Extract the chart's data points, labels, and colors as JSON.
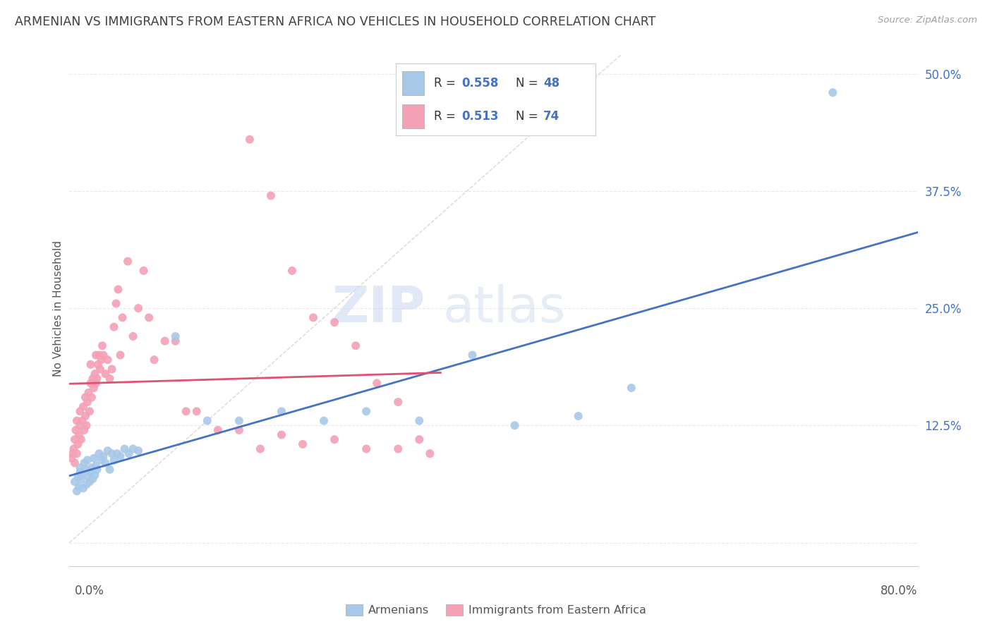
{
  "title": "ARMENIAN VS IMMIGRANTS FROM EASTERN AFRICA NO VEHICLES IN HOUSEHOLD CORRELATION CHART",
  "source": "Source: ZipAtlas.com",
  "ylabel": "No Vehicles in Household",
  "y_ticks_right": [
    0.0,
    0.125,
    0.25,
    0.375,
    0.5
  ],
  "y_tick_labels_right": [
    "",
    "12.5%",
    "25.0%",
    "37.5%",
    "50.0%"
  ],
  "xmin": 0.0,
  "xmax": 0.8,
  "ymin": -0.025,
  "ymax": 0.525,
  "color_armenian_dot": "#a8c8e8",
  "color_eastern_africa_dot": "#f4a0b5",
  "color_line_armenian": "#4472c4",
  "color_line_eastern_africa": "#e05070",
  "color_diagonal": "#c8c8c8",
  "color_grid": "#e8e8e8",
  "color_title": "#404040",
  "color_source": "#a0a0a0",
  "color_legend_text_blue": "#4472c4",
  "color_legend_text_pink": "#e05070",
  "watermark_zip": "ZIP",
  "watermark_atlas": "atlas",
  "legend_bottom_label1": "Armenians",
  "legend_bottom_label2": "Immigrants from Eastern Africa",
  "armenian_x": [
    0.005,
    0.007,
    0.008,
    0.009,
    0.01,
    0.01,
    0.011,
    0.012,
    0.013,
    0.014,
    0.015,
    0.016,
    0.017,
    0.018,
    0.019,
    0.02,
    0.021,
    0.022,
    0.023,
    0.024,
    0.025,
    0.026,
    0.028,
    0.03,
    0.032,
    0.034,
    0.036,
    0.038,
    0.04,
    0.042,
    0.045,
    0.048,
    0.052,
    0.056,
    0.06,
    0.065,
    0.1,
    0.13,
    0.16,
    0.2,
    0.24,
    0.28,
    0.33,
    0.38,
    0.42,
    0.48,
    0.53,
    0.72
  ],
  "armenian_y": [
    0.065,
    0.055,
    0.07,
    0.06,
    0.075,
    0.08,
    0.068,
    0.072,
    0.058,
    0.085,
    0.078,
    0.062,
    0.088,
    0.07,
    0.065,
    0.075,
    0.08,
    0.068,
    0.09,
    0.072,
    0.082,
    0.078,
    0.095,
    0.088,
    0.092,
    0.085,
    0.098,
    0.078,
    0.095,
    0.088,
    0.095,
    0.092,
    0.1,
    0.095,
    0.1,
    0.098,
    0.22,
    0.13,
    0.13,
    0.14,
    0.13,
    0.14,
    0.13,
    0.2,
    0.125,
    0.135,
    0.165,
    0.48
  ],
  "eastern_x": [
    0.002,
    0.003,
    0.004,
    0.005,
    0.005,
    0.006,
    0.007,
    0.007,
    0.008,
    0.009,
    0.01,
    0.01,
    0.011,
    0.012,
    0.013,
    0.014,
    0.015,
    0.015,
    0.016,
    0.017,
    0.018,
    0.019,
    0.02,
    0.02,
    0.021,
    0.022,
    0.023,
    0.024,
    0.025,
    0.025,
    0.026,
    0.027,
    0.028,
    0.029,
    0.03,
    0.031,
    0.032,
    0.034,
    0.036,
    0.038,
    0.04,
    0.042,
    0.044,
    0.046,
    0.048,
    0.05,
    0.055,
    0.06,
    0.065,
    0.07,
    0.075,
    0.08,
    0.09,
    0.1,
    0.11,
    0.12,
    0.14,
    0.16,
    0.18,
    0.2,
    0.22,
    0.25,
    0.28,
    0.31,
    0.34,
    0.17,
    0.19,
    0.21,
    0.23,
    0.25,
    0.27,
    0.29,
    0.31,
    0.33
  ],
  "eastern_y": [
    0.09,
    0.095,
    0.1,
    0.11,
    0.085,
    0.12,
    0.095,
    0.13,
    0.105,
    0.115,
    0.125,
    0.14,
    0.11,
    0.13,
    0.145,
    0.12,
    0.135,
    0.155,
    0.125,
    0.15,
    0.16,
    0.14,
    0.17,
    0.19,
    0.155,
    0.175,
    0.165,
    0.18,
    0.17,
    0.2,
    0.175,
    0.19,
    0.2,
    0.185,
    0.195,
    0.21,
    0.2,
    0.18,
    0.195,
    0.175,
    0.185,
    0.23,
    0.255,
    0.27,
    0.2,
    0.24,
    0.3,
    0.22,
    0.25,
    0.29,
    0.24,
    0.195,
    0.215,
    0.215,
    0.14,
    0.14,
    0.12,
    0.12,
    0.1,
    0.115,
    0.105,
    0.11,
    0.1,
    0.1,
    0.095,
    0.43,
    0.37,
    0.29,
    0.24,
    0.235,
    0.21,
    0.17,
    0.15,
    0.11
  ]
}
